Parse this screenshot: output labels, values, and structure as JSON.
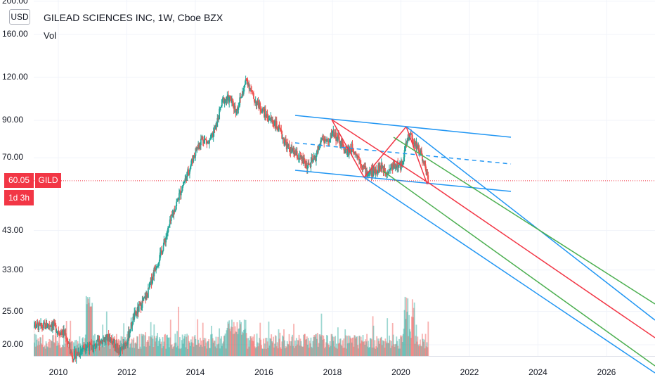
{
  "header": {
    "currency": "USD",
    "title": "GILEAD SCIENCES INC, 1W, Cboe BZX",
    "volume_label": "Vol"
  },
  "price_axis": {
    "ticks": [
      "200.00",
      "160.00",
      "120.00",
      "90.00",
      "70.00",
      "43.00",
      "33.00",
      "25.00",
      "20.00"
    ]
  },
  "time_axis": {
    "ticks": [
      "2010",
      "2012",
      "2014",
      "2016",
      "2018",
      "2020",
      "2022",
      "2024",
      "2026"
    ]
  },
  "badges": {
    "last_price": "60.05",
    "symbol": "GILD",
    "countdown": "1d 3h"
  },
  "colors": {
    "up": "#26a69a",
    "down": "#ef5350",
    "channel": "#2196f3",
    "pitchfork_median": "#f23645",
    "pitchfork_inner": "#4caf50",
    "last_price_line": "#f23645"
  },
  "chart_data": {
    "type": "candlestick",
    "symbol": "GILD",
    "exchange": "Cboe BZX",
    "interval": "1W",
    "y_scale": "log",
    "ylim": [
      18.5,
      210
    ],
    "xlim": [
      2009.2,
      2027.5
    ],
    "last_price": 60.05,
    "price_path": [
      [
        2009.2,
        23
      ],
      [
        2009.5,
        22.5
      ],
      [
        2009.8,
        23
      ],
      [
        2010.0,
        22
      ],
      [
        2010.2,
        21.5
      ],
      [
        2010.4,
        18.5
      ],
      [
        2010.6,
        19
      ],
      [
        2010.8,
        20
      ],
      [
        2011.0,
        19.5
      ],
      [
        2011.2,
        20.5
      ],
      [
        2011.5,
        21
      ],
      [
        2011.8,
        19
      ],
      [
        2012.0,
        20.5
      ],
      [
        2012.2,
        24
      ],
      [
        2012.4,
        26
      ],
      [
        2012.6,
        28
      ],
      [
        2012.8,
        33
      ],
      [
        2013.0,
        37
      ],
      [
        2013.2,
        43
      ],
      [
        2013.4,
        50
      ],
      [
        2013.6,
        57
      ],
      [
        2013.8,
        64
      ],
      [
        2014.0,
        73
      ],
      [
        2014.2,
        80
      ],
      [
        2014.4,
        77
      ],
      [
        2014.6,
        86
      ],
      [
        2014.8,
        103
      ],
      [
        2015.0,
        104
      ],
      [
        2015.2,
        96
      ],
      [
        2015.4,
        110
      ],
      [
        2015.5,
        119
      ],
      [
        2015.7,
        104
      ],
      [
        2015.9,
        98
      ],
      [
        2016.1,
        92
      ],
      [
        2016.3,
        89
      ],
      [
        2016.5,
        82
      ],
      [
        2016.7,
        75
      ],
      [
        2016.9,
        72
      ],
      [
        2017.1,
        69
      ],
      [
        2017.3,
        66
      ],
      [
        2017.5,
        70
      ],
      [
        2017.7,
        80
      ],
      [
        2017.9,
        77
      ],
      [
        2018.0,
        84
      ],
      [
        2018.2,
        78
      ],
      [
        2018.4,
        73
      ],
      [
        2018.6,
        75
      ],
      [
        2018.8,
        69
      ],
      [
        2019.0,
        63
      ],
      [
        2019.2,
        64
      ],
      [
        2019.4,
        66
      ],
      [
        2019.6,
        64
      ],
      [
        2019.8,
        67
      ],
      [
        2020.0,
        66
      ],
      [
        2020.15,
        76
      ],
      [
        2020.25,
        83
      ],
      [
        2020.4,
        77
      ],
      [
        2020.55,
        74
      ],
      [
        2020.7,
        66
      ],
      [
        2020.8,
        60.05
      ]
    ]
  }
}
